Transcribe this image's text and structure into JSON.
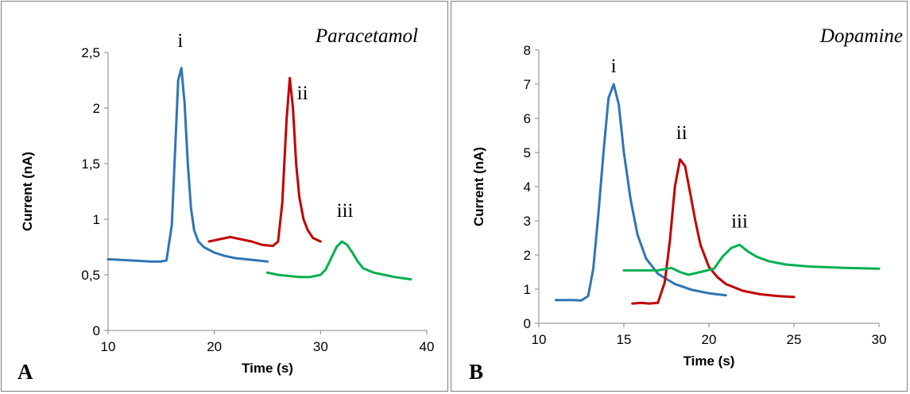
{
  "colors": {
    "i": "#2e75b6",
    "ii": "#c00000",
    "iii": "#00b050"
  },
  "chart_data": [
    {
      "type": "line",
      "title": "Paracetamol",
      "panel_label": "A",
      "xlabel": "Time (s)",
      "ylabel": "Current (nA)",
      "xlim": [
        10,
        40
      ],
      "ylim": [
        0,
        2.5
      ],
      "xticks": [
        "10",
        "20",
        "30",
        "40"
      ],
      "yticks": [
        "0",
        "0,5",
        "1",
        "1,5",
        "2",
        "2,5"
      ],
      "grid": false,
      "peak_labels": [
        {
          "text": "i",
          "x": 16.8,
          "y": 2.55
        },
        {
          "text": "ii",
          "x": 28.3,
          "y": 2.08
        },
        {
          "text": "iii",
          "x": 32.3,
          "y": 1.02
        }
      ],
      "series": [
        {
          "label": "i",
          "color": "#2e75b6",
          "x": [
            10,
            12,
            14,
            15,
            15.5,
            16,
            16.3,
            16.6,
            16.9,
            17.2,
            17.5,
            17.8,
            18.1,
            18.5,
            19,
            20,
            21,
            22,
            24,
            25
          ],
          "y": [
            0.64,
            0.63,
            0.62,
            0.62,
            0.63,
            0.95,
            1.6,
            2.25,
            2.36,
            2.05,
            1.5,
            1.1,
            0.9,
            0.8,
            0.75,
            0.7,
            0.67,
            0.65,
            0.63,
            0.62
          ]
        },
        {
          "label": "ii",
          "color": "#c00000",
          "x": [
            19.5,
            20.5,
            21.5,
            22.5,
            23.5,
            24.5,
            25.5,
            26,
            26.4,
            26.8,
            27.1,
            27.4,
            27.7,
            28,
            28.4,
            28.8,
            29.3,
            30
          ],
          "y": [
            0.8,
            0.82,
            0.84,
            0.82,
            0.8,
            0.77,
            0.76,
            0.8,
            1.15,
            1.9,
            2.27,
            2.0,
            1.5,
            1.2,
            1.0,
            0.9,
            0.83,
            0.8
          ]
        },
        {
          "label": "iii",
          "color": "#00b050",
          "x": [
            25,
            26,
            27,
            28,
            29,
            30,
            30.5,
            31,
            31.5,
            32,
            32.5,
            33,
            33.5,
            34,
            35,
            36,
            37,
            38.5
          ],
          "y": [
            0.52,
            0.5,
            0.49,
            0.48,
            0.48,
            0.5,
            0.55,
            0.65,
            0.75,
            0.8,
            0.77,
            0.7,
            0.62,
            0.56,
            0.52,
            0.5,
            0.48,
            0.46
          ]
        }
      ]
    },
    {
      "type": "line",
      "title": "Dopamine",
      "panel_label": "B",
      "xlabel": "Time (s)",
      "ylabel": "Current (nA)",
      "xlim": [
        10,
        30
      ],
      "ylim": [
        0,
        8
      ],
      "xticks": [
        "10",
        "15",
        "20",
        "25",
        "30"
      ],
      "yticks": [
        "0",
        "1",
        "2",
        "3",
        "4",
        "5",
        "6",
        "7",
        "8"
      ],
      "grid": false,
      "peak_labels": [
        {
          "text": "i",
          "x": 14.4,
          "y": 7.35
        },
        {
          "text": "ii",
          "x": 18.4,
          "y": 5.4
        },
        {
          "text": "iii",
          "x": 21.8,
          "y": 2.8
        }
      ],
      "series": [
        {
          "label": "i",
          "color": "#2e75b6",
          "x": [
            11,
            12,
            12.5,
            12.9,
            13.2,
            13.5,
            13.8,
            14.1,
            14.4,
            14.7,
            15,
            15.4,
            15.8,
            16.3,
            17,
            18,
            19,
            20,
            21
          ],
          "y": [
            0.68,
            0.68,
            0.67,
            0.8,
            1.6,
            3.2,
            5.0,
            6.6,
            7.0,
            6.4,
            5.0,
            3.6,
            2.6,
            1.9,
            1.45,
            1.15,
            0.98,
            0.88,
            0.82
          ]
        },
        {
          "label": "ii",
          "color": "#c00000",
          "x": [
            15.5,
            16,
            16.5,
            17,
            17.4,
            17.7,
            18,
            18.3,
            18.6,
            18.9,
            19.2,
            19.5,
            20,
            20.5,
            21,
            22,
            23,
            24,
            25
          ],
          "y": [
            0.58,
            0.6,
            0.58,
            0.6,
            1.2,
            2.4,
            4.0,
            4.8,
            4.6,
            3.8,
            3.0,
            2.3,
            1.65,
            1.35,
            1.15,
            0.95,
            0.85,
            0.8,
            0.77
          ]
        },
        {
          "label": "iii",
          "color": "#00b050",
          "x": [
            15,
            16,
            17,
            17.8,
            18.3,
            18.8,
            19.5,
            20.3,
            20.8,
            21.3,
            21.8,
            22.3,
            22.8,
            23.5,
            24.5,
            26,
            28,
            30
          ],
          "y": [
            1.55,
            1.55,
            1.55,
            1.62,
            1.5,
            1.42,
            1.5,
            1.6,
            1.95,
            2.2,
            2.3,
            2.1,
            1.95,
            1.82,
            1.72,
            1.66,
            1.62,
            1.6
          ]
        }
      ]
    }
  ]
}
